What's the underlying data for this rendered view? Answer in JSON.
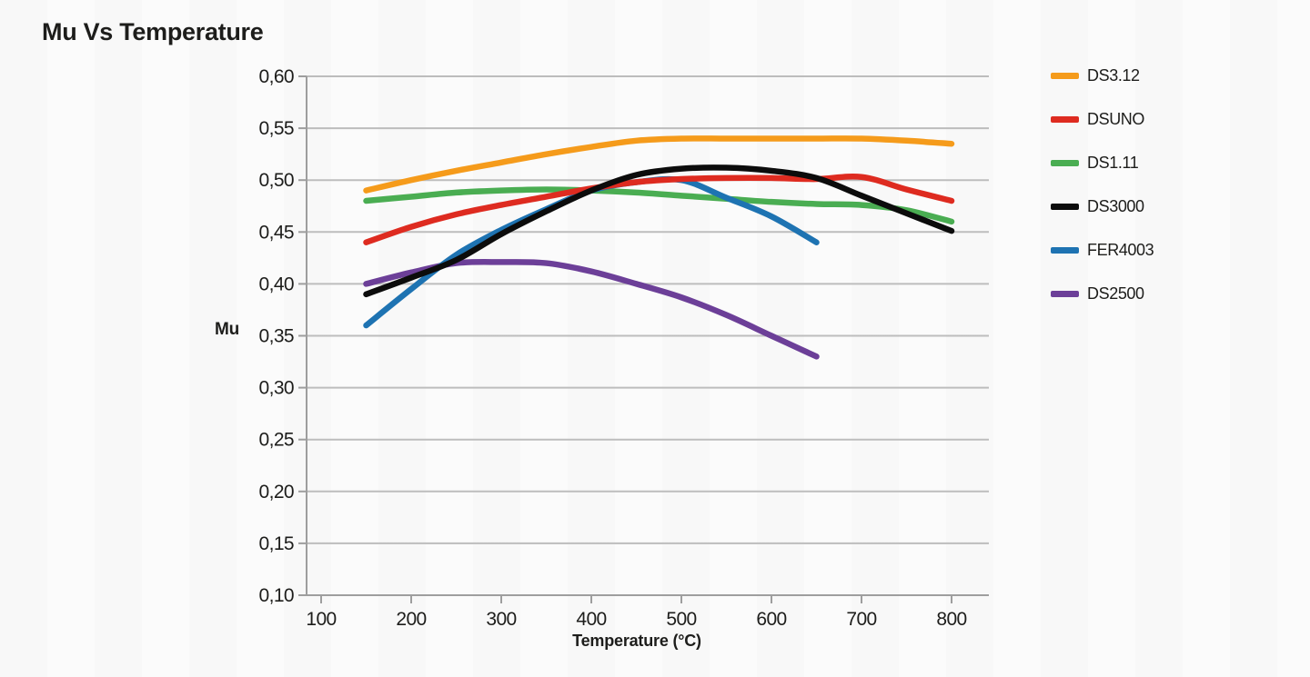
{
  "colors": {
    "text": "#1d1d1b",
    "grid": "#bdbdbd",
    "axis": "#9e9e9e",
    "background": "#fbfbfb"
  },
  "chart_data": {
    "type": "line",
    "title": "Mu Vs Temperature",
    "xlabel": "Temperature (°C)",
    "ylabel": "Mu",
    "xlim": [
      100,
      840
    ],
    "ylim": [
      0.1,
      0.6
    ],
    "grid": "horizontal",
    "legend_position": "right",
    "xticks": {
      "values": [
        100,
        200,
        300,
        400,
        500,
        600,
        700,
        800
      ],
      "labels": [
        "100",
        "200",
        "300",
        "400",
        "500",
        "600",
        "700",
        "800"
      ]
    },
    "yticks": {
      "values": [
        0.6,
        0.55,
        0.5,
        0.45,
        0.4,
        0.35,
        0.3,
        0.25,
        0.2,
        0.15,
        0.1
      ],
      "labels": [
        "0,60",
        "0,55",
        "0,50",
        "0,45",
        "0,40",
        "0,35",
        "0,30",
        "0,25",
        "0,20",
        "0,15",
        "0,10"
      ]
    },
    "series": [
      {
        "name": "DS3.12",
        "color": "#F59B1B",
        "x": [
          150,
          200,
          250,
          300,
          350,
          400,
          450,
          500,
          550,
          600,
          650,
          700,
          750,
          800
        ],
        "values": [
          0.49,
          0.5,
          0.509,
          0.517,
          0.525,
          0.532,
          0.538,
          0.54,
          0.54,
          0.54,
          0.54,
          0.54,
          0.538,
          0.535
        ]
      },
      {
        "name": "DSUNO",
        "color": "#DE2B20",
        "x": [
          150,
          200,
          250,
          300,
          350,
          400,
          450,
          500,
          550,
          600,
          650,
          700,
          750,
          800
        ],
        "values": [
          0.44,
          0.455,
          0.467,
          0.476,
          0.484,
          0.492,
          0.498,
          0.501,
          0.502,
          0.502,
          0.501,
          0.503,
          0.491,
          0.48
        ]
      },
      {
        "name": "DS1.11",
        "color": "#4AAD52",
        "x": [
          150,
          200,
          250,
          300,
          350,
          400,
          450,
          500,
          550,
          600,
          650,
          700,
          750,
          800
        ],
        "values": [
          0.48,
          0.484,
          0.488,
          0.49,
          0.491,
          0.49,
          0.488,
          0.485,
          0.482,
          0.479,
          0.477,
          0.476,
          0.471,
          0.46
        ]
      },
      {
        "name": "DS3000",
        "color": "#0c0c0c",
        "x": [
          150,
          200,
          250,
          300,
          350,
          400,
          450,
          500,
          550,
          600,
          650,
          700,
          750,
          800
        ],
        "values": [
          0.39,
          0.406,
          0.423,
          0.448,
          0.47,
          0.49,
          0.505,
          0.511,
          0.512,
          0.509,
          0.502,
          0.485,
          0.468,
          0.451
        ]
      },
      {
        "name": "FER4003",
        "color": "#1E73B2",
        "x": [
          150,
          200,
          250,
          300,
          350,
          400,
          450,
          500,
          550,
          600,
          650
        ],
        "values": [
          0.36,
          0.395,
          0.428,
          0.452,
          0.472,
          0.49,
          0.498,
          0.5,
          0.483,
          0.465,
          0.44
        ]
      },
      {
        "name": "DS2500",
        "color": "#6C3F98",
        "x": [
          150,
          200,
          250,
          300,
          350,
          400,
          450,
          500,
          550,
          600,
          650
        ],
        "values": [
          0.4,
          0.411,
          0.42,
          0.421,
          0.42,
          0.412,
          0.4,
          0.387,
          0.37,
          0.35,
          0.33
        ]
      }
    ]
  }
}
